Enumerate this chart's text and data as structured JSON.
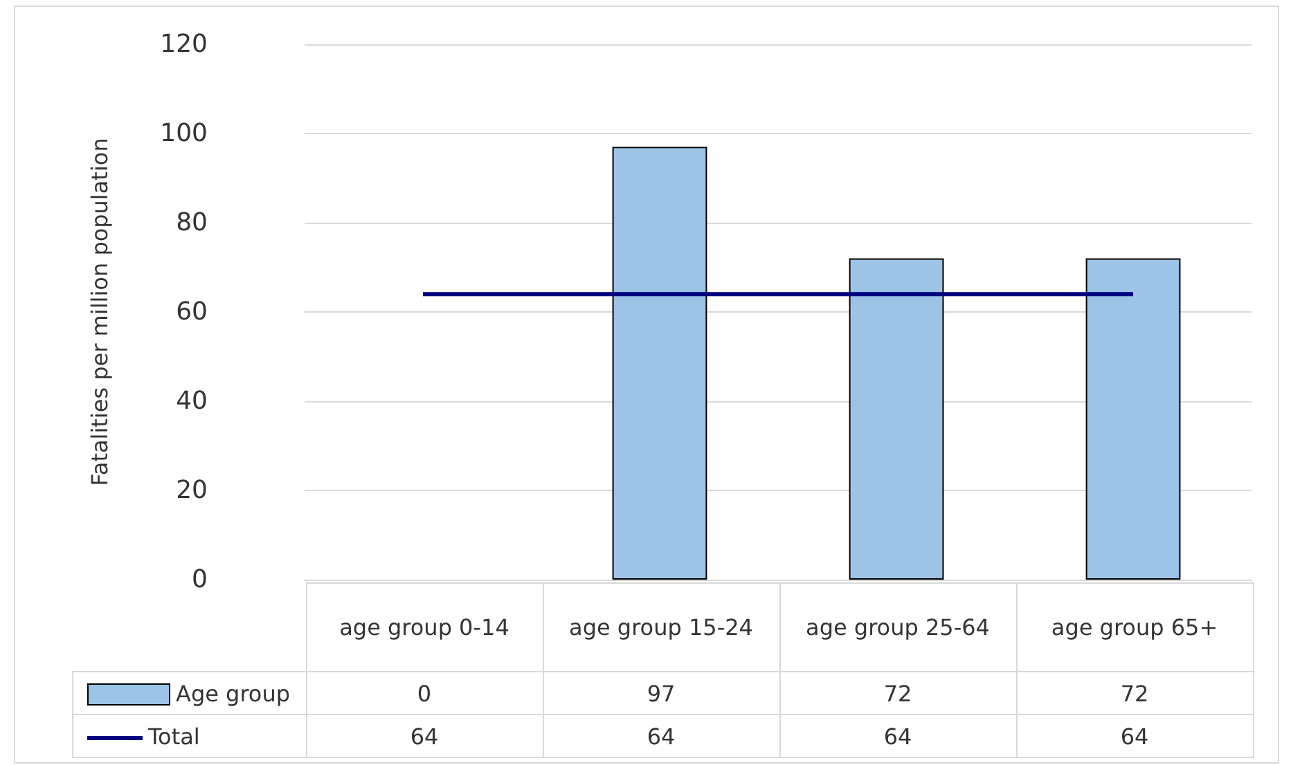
{
  "chart_data": {
    "type": "bar",
    "ylabel": "Fatalities per million population",
    "categories": [
      "age group 0-14",
      "age group 15-24",
      "age group 25-64",
      "age group 65+"
    ],
    "series": [
      {
        "name": "Age group",
        "color": "#9dc3e6",
        "values": [
          0,
          97,
          72,
          72
        ]
      },
      {
        "name": "Total",
        "type": "line",
        "color": "#000080",
        "values": [
          64,
          64,
          64,
          64
        ]
      }
    ],
    "ylim": [
      0,
      120
    ],
    "yticks": [
      0,
      20,
      40,
      60,
      80,
      100,
      120
    ],
    "grid": "y",
    "legend": "bottom",
    "data_labels": true,
    "marker": "none"
  }
}
